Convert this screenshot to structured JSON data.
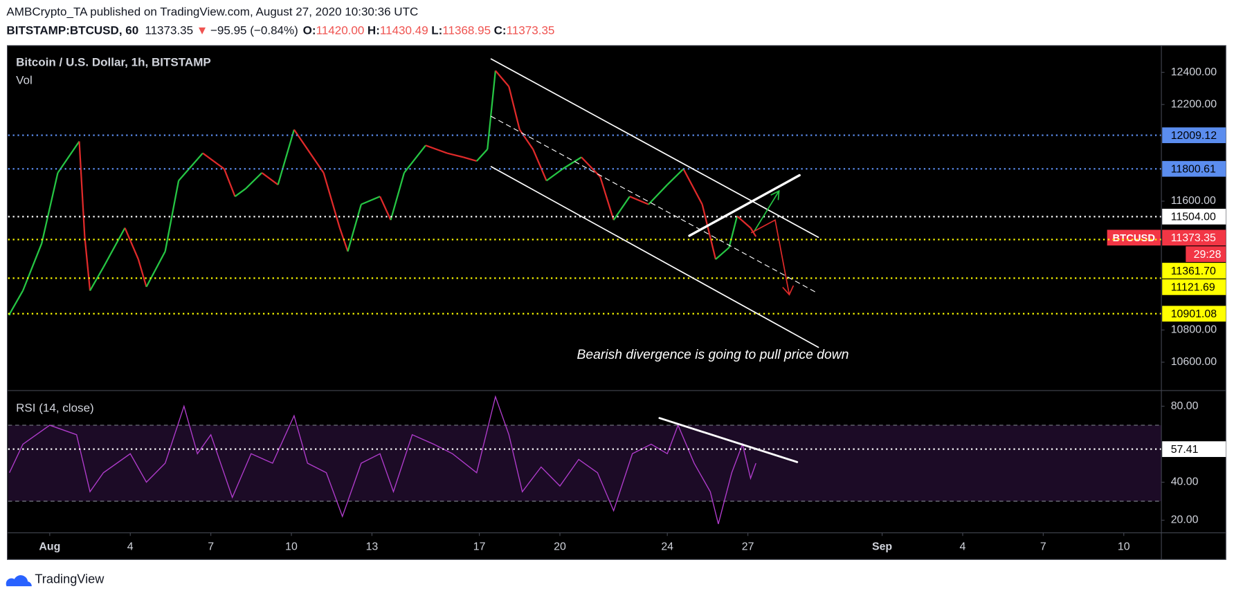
{
  "header": {
    "published": "AMBCrypto_TA published on TradingView.com, August 27, 2020 10:30:36 UTC",
    "symbol": "BITSTAMP:BTCUSD, 60",
    "last": "11373.35",
    "arrow": "▼",
    "change": "−95.95 (−0.84%)",
    "ohlc": [
      {
        "label": "O:",
        "value": "11420.00"
      },
      {
        "label": "H:",
        "value": "11430.49"
      },
      {
        "label": "L:",
        "value": "11368.95"
      },
      {
        "label": "C:",
        "value": "11373.35"
      }
    ]
  },
  "footer": "TradingView",
  "chart_data": [
    {
      "type": "line",
      "title": "Bitcoin / U.S. Dollar, 1h, BITSTAMP",
      "subtitle": "Vol",
      "annotation": "Bearish divergence is going to pull price down",
      "x": [
        -0.5,
        0,
        0.7,
        1.3,
        2.1,
        2.3,
        2.5,
        3,
        3.8,
        4.3,
        4.6,
        5.3,
        5.8,
        6.7,
        7.5,
        7.9,
        8.3,
        8.9,
        9.5,
        10.1,
        10.6,
        11.2,
        11.8,
        12.1,
        12.6,
        13.3,
        13.7,
        14.2,
        15,
        15.8,
        16.4,
        16.9,
        17.3,
        17.6,
        18.1,
        18.5,
        19,
        19.5,
        20.1,
        20.8,
        21.5,
        22,
        22.6,
        23.3,
        24,
        24.6,
        25.3,
        25.8,
        26.3,
        26.6,
        27.1,
        27.3
      ],
      "series": [
        {
          "name": "BTCUSD",
          "up_color": "#26c644",
          "down_color": "#e02a2a",
          "values": [
            10898,
            11044,
            11337,
            11776,
            11971,
            11385,
            11044,
            11190,
            11434,
            11239,
            11068,
            11288,
            11727,
            11898,
            11800,
            11629,
            11678,
            11776,
            11702,
            12044,
            11922,
            11776,
            11434,
            11288,
            11580,
            11629,
            11483,
            11776,
            11946,
            11898,
            11873,
            11849,
            11922,
            12410,
            12312,
            12044,
            11922,
            11727,
            11800,
            11873,
            11751,
            11483,
            11629,
            11580,
            11702,
            11800,
            11580,
            11239,
            11312,
            11507,
            11434,
            11380
          ]
        }
      ],
      "xlim": [
        -0.55,
        42.4
      ],
      "xticks": [
        {
          "value": 1,
          "label": "Aug"
        },
        4,
        7,
        10,
        13,
        17,
        20,
        24,
        27,
        {
          "value": 32,
          "label": "Sep"
        },
        {
          "value": 35,
          "label": "4"
        },
        {
          "value": 38,
          "label": "7"
        },
        {
          "value": 41,
          "label": "10"
        }
      ],
      "ylim": [
        10424,
        12566
      ],
      "yticks": [
        {
          "value": 12400,
          "label": "12400.00"
        },
        {
          "value": 12200,
          "label": "12200.00"
        },
        {
          "value": 11600,
          "label": "11600.00"
        },
        {
          "value": 10800,
          "label": "10800.00"
        },
        {
          "value": 10600,
          "label": "10600.00"
        }
      ],
      "grid": false,
      "levels": [
        {
          "value": 12009.12,
          "color": "#5b8def",
          "text_color": "#000000",
          "line": true
        },
        {
          "value": 11800.61,
          "color": "#5b8def",
          "text_color": "#000000",
          "line": true
        },
        {
          "value": 11504,
          "label": "11504.00",
          "color": "#ffffff",
          "text_color": "#000000",
          "line": true
        },
        {
          "value": 11373.35,
          "color": "#f23645",
          "text_color": "#ffffff",
          "line": false,
          "tag": "BTCUSD",
          "countdown": "29:28"
        },
        {
          "value": 11361.7,
          "label": "11361.70",
          "color": "#ffff00",
          "text_color": "#000000",
          "line": true
        },
        {
          "value": 11121.69,
          "color": "#ffff00",
          "text_color": "#000000",
          "line": true
        },
        {
          "value": 10901.08,
          "color": "#ffff00",
          "text_color": "#000000",
          "line": true
        }
      ]
    },
    {
      "type": "line",
      "title": "RSI (14, close)",
      "x": [
        -0.5,
        0,
        1,
        2,
        2.5,
        3,
        4,
        4.6,
        5.3,
        6,
        6.5,
        7,
        7.8,
        8.5,
        9.3,
        10.1,
        10.6,
        11.3,
        11.9,
        12.6,
        13.3,
        13.8,
        14.5,
        15.3,
        16,
        16.9,
        17.6,
        18.1,
        18.6,
        19.3,
        20,
        20.7,
        21.4,
        22,
        22.7,
        23.4,
        24,
        24.4,
        25,
        25.6,
        25.9,
        26.4,
        26.8,
        27.1,
        27.3
      ],
      "series": [
        {
          "name": "RSI",
          "color": "#b03ccc",
          "values": [
            45,
            60,
            70,
            65,
            35,
            45,
            55,
            40,
            50,
            80,
            55,
            65,
            32,
            55,
            50,
            75,
            50,
            45,
            22,
            50,
            55,
            35,
            65,
            60,
            55,
            45,
            85,
            65,
            35,
            48,
            38,
            52,
            45,
            25,
            55,
            60,
            55,
            70,
            50,
            35,
            18,
            45,
            60,
            42,
            50
          ]
        }
      ],
      "xlim": [
        -0.55,
        42.4
      ],
      "ylim": [
        13.8,
        87
      ],
      "yticks": [
        {
          "value": 80,
          "label": "80.00"
        },
        {
          "value": 40,
          "label": "40.00"
        },
        {
          "value": 20,
          "label": "20.00"
        }
      ],
      "band": [
        30,
        70
      ],
      "band_color": "#1c0b26",
      "grid": false,
      "levels": [
        {
          "value": 57.41,
          "color": "#ffffff",
          "text_color": "#000000",
          "line": true
        }
      ]
    }
  ]
}
